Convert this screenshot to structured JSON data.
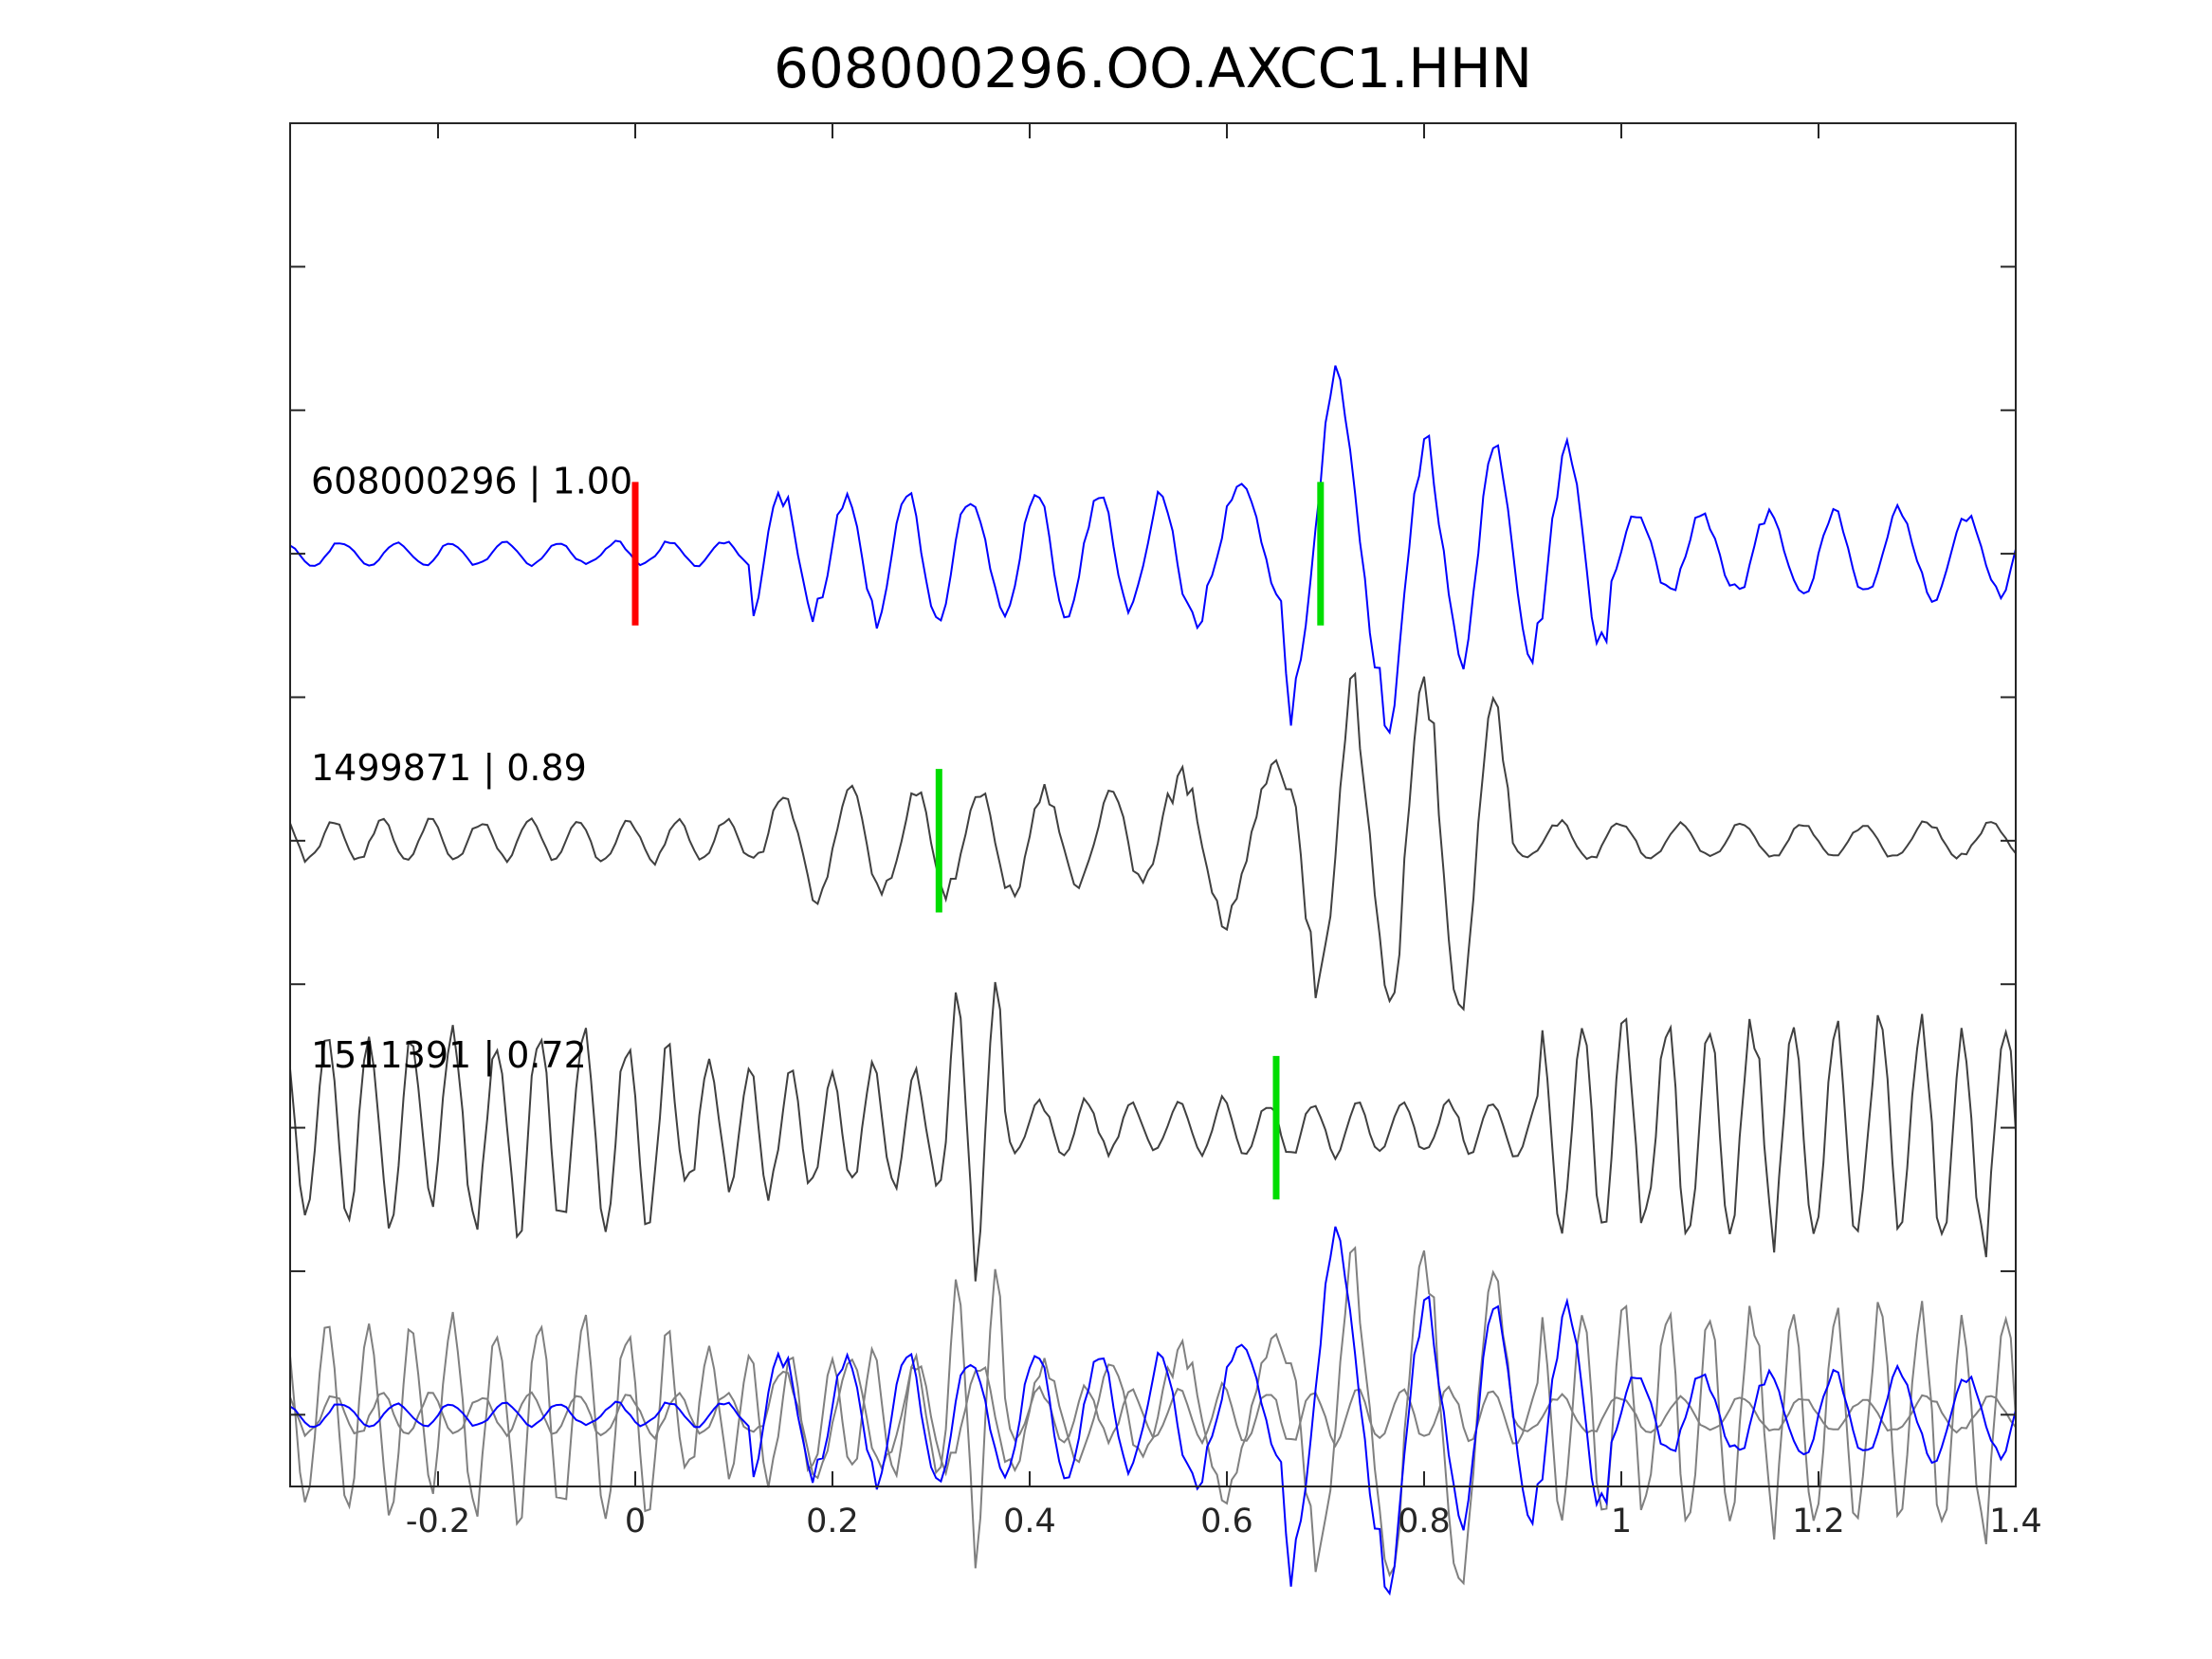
{
  "chart_data": {
    "type": "line",
    "title": "608000296.OO.AXCC1.HHN",
    "xlabel": "",
    "ylabel": "",
    "xlim": [
      -0.35,
      1.4
    ],
    "ylim": [
      -4.5,
      5.0
    ],
    "x_ticks": [
      -0.2,
      0,
      0.2,
      0.4,
      0.6,
      0.8,
      1.0,
      1.2,
      1.4
    ],
    "x_tick_labels": [
      "-0.2",
      "0",
      "0.2",
      "0.4",
      "0.6",
      "0.8",
      "1",
      "1.2",
      "1.4"
    ],
    "y_ticks": [
      -4,
      -3,
      -2,
      -1,
      0,
      1,
      2,
      3,
      4
    ],
    "y_tick_labels_visible": false,
    "grid": false,
    "sample_interval": 0.005,
    "colors": {
      "template": "#0000ff",
      "match": "#404040",
      "overlay": "#808080",
      "p_pick": "#ff0000",
      "s_pick": "#00dd00",
      "axis": "#262626"
    },
    "traces": [
      {
        "label": "608000296 | 1.00",
        "event_id": "608000296",
        "cc": 1.0,
        "offset": 2,
        "color": "#0000ff",
        "picks": [
          {
            "phase": "P",
            "x": 0.0,
            "color": "#ff0000"
          },
          {
            "phase": "S",
            "x": 0.695,
            "color": "#00dd00"
          }
        ],
        "segments": [
          {
            "start": -0.35,
            "end": 0.12,
            "amp": 0.08,
            "freq": 18
          },
          {
            "start": 0.12,
            "end": 0.56,
            "amp": 0.42,
            "freq": 15.5
          },
          {
            "start": 0.56,
            "end": 0.66,
            "amp": 0.45,
            "freq": 10
          },
          {
            "start": 0.66,
            "end": 0.78,
            "amp": 1.05,
            "freq": 9.8
          },
          {
            "start": 0.78,
            "end": 0.99,
            "amp": 0.72,
            "freq": 14
          },
          {
            "start": 0.99,
            "end": 1.4,
            "amp": 0.28,
            "freq": 15
          }
        ]
      },
      {
        "label": "1499871 | 0.89",
        "event_id": "1499871",
        "cc": 0.89,
        "offset": 0,
        "color": "#404040",
        "picks": [
          {
            "phase": "S",
            "x": 0.308,
            "color": "#00dd00"
          }
        ],
        "segments": [
          {
            "start": -0.35,
            "end": 0.13,
            "amp": 0.14,
            "freq": 20
          },
          {
            "start": 0.13,
            "end": 0.55,
            "amp": 0.35,
            "freq": 15
          },
          {
            "start": 0.55,
            "end": 0.67,
            "amp": 0.55,
            "freq": 10
          },
          {
            "start": 0.67,
            "end": 0.89,
            "amp": 1.05,
            "freq": 14
          },
          {
            "start": 0.89,
            "end": 1.4,
            "amp": 0.12,
            "freq": 16
          }
        ]
      },
      {
        "label": "1511391 | 0.72",
        "event_id": "1511391",
        "cc": 0.72,
        "offset": -2,
        "color": "#404040",
        "picks": [
          {
            "phase": "S",
            "x": 0.65,
            "color": "#00dd00"
          }
        ],
        "segments": [
          {
            "start": -0.35,
            "end": 0.04,
            "amp": 0.65,
            "freq": 23
          },
          {
            "start": 0.04,
            "end": 0.32,
            "amp": 0.4,
            "freq": 24
          },
          {
            "start": 0.32,
            "end": 0.38,
            "amp": 1.0,
            "freq": 25
          },
          {
            "start": 0.38,
            "end": 0.92,
            "amp": 0.18,
            "freq": 22
          },
          {
            "start": 0.92,
            "end": 1.4,
            "amp": 0.75,
            "freq": 23
          }
        ]
      }
    ],
    "overlay_offset": -4
  }
}
